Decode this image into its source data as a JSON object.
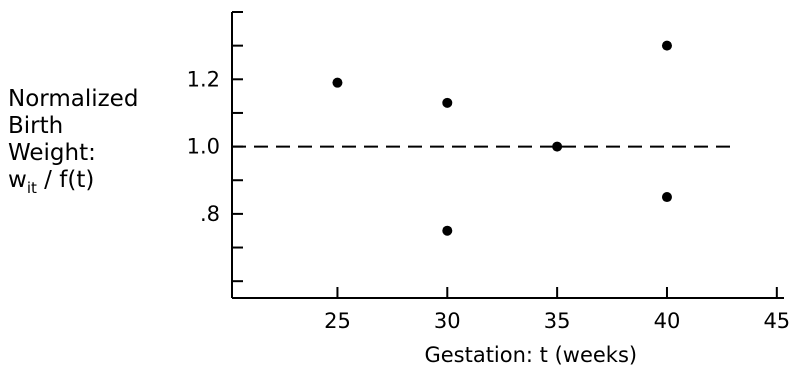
{
  "chart_data": {
    "type": "scatter",
    "title": "",
    "xlabel": "Gestation: t  (weeks)",
    "ylabel_lines": [
      "Normalized",
      "Birth",
      "Weight:"
    ],
    "ylabel_formula": {
      "w": "w",
      "sub": "it",
      "rest": " / f(t)"
    },
    "xlim": [
      20.2,
      45.6
    ],
    "ylim": [
      0.55,
      1.4
    ],
    "x_ticks": [
      25,
      30,
      35,
      40,
      45
    ],
    "x_tick_labels": [
      "25",
      "30",
      "35",
      "40",
      "45"
    ],
    "y_ticks": [
      0.6,
      0.7,
      0.8,
      0.9,
      1.0,
      1.1,
      1.2,
      1.3,
      1.4
    ],
    "y_tick_labels": [
      {
        "value": 0.8,
        "label": ".8"
      },
      {
        "value": 1.0,
        "label": "1.0"
      },
      {
        "value": 1.2,
        "label": "1.2"
      }
    ],
    "reference_line": {
      "y": 1.0,
      "x_end": 43,
      "style": "dashed"
    },
    "points": [
      {
        "x": 25,
        "y": 1.19
      },
      {
        "x": 30,
        "y": 1.13
      },
      {
        "x": 30,
        "y": 0.75
      },
      {
        "x": 35,
        "y": 1.0
      },
      {
        "x": 40,
        "y": 1.3
      },
      {
        "x": 40,
        "y": 0.85
      }
    ],
    "grid": false
  }
}
